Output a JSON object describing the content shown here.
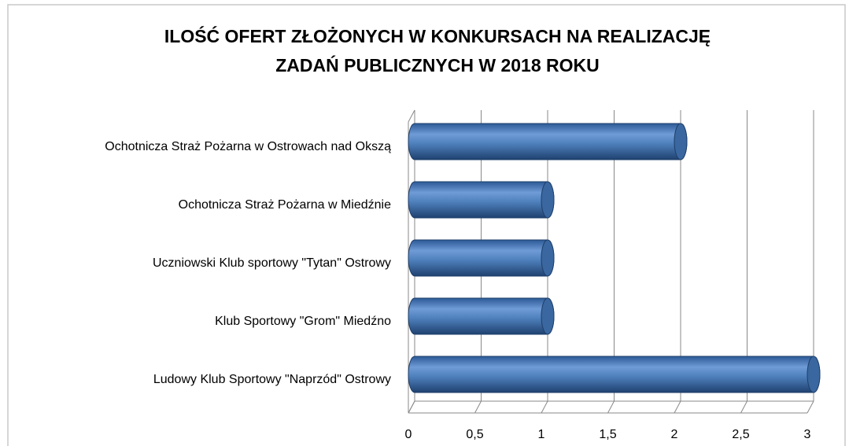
{
  "chart_data": {
    "type": "bar",
    "orientation": "horizontal",
    "title": [
      "ILOŚĆ OFERT ZŁOŻONYCH W KONKURSACH NA REALIZACJĘ",
      "ZADAŃ PUBLICZNYCH  W 2018 ROKU"
    ],
    "categories": [
      "Ochotnicza Straż Pożarna w Ostrowach nad Okszą",
      "Ochotnicza Straż Pożarna w Miedźnie",
      "Uczniowski Klub sportowy \"Tytan\" Ostrowy",
      "Klub Sportowy \"Grom\" Miedźno",
      "Ludowy Klub Sportowy \"Naprzód\" Ostrowy"
    ],
    "values": [
      2,
      1,
      1,
      1,
      3
    ],
    "color": "#4f81bd",
    "xlim": [
      0,
      3
    ],
    "xticks": [
      0,
      {
        "value": 0.5,
        "label": "0,5"
      },
      1,
      {
        "value": 1.5,
        "label": "1,5"
      },
      2,
      {
        "value": 2.5,
        "label": "2,5"
      },
      3
    ],
    "grid": true
  }
}
